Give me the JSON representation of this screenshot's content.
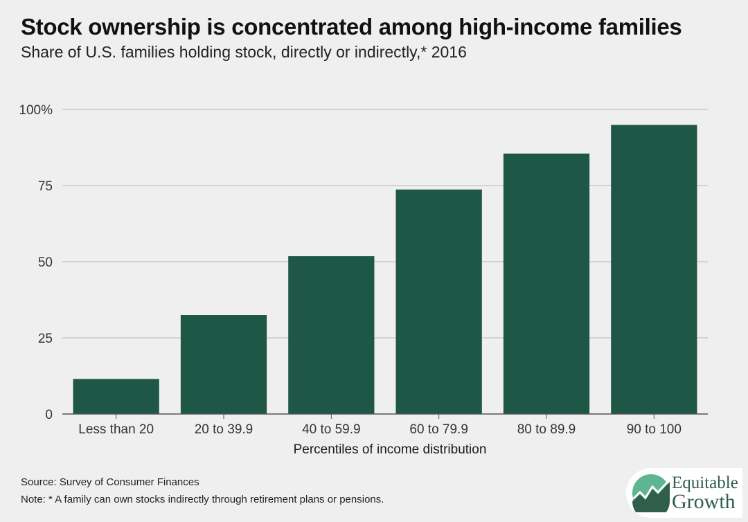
{
  "header": {
    "title": "Stock ownership is concentrated among high-income families",
    "subtitle": "Share of U.S. families holding stock, directly or indirectly,* 2016"
  },
  "footer": {
    "source": "Source: Survey of Consumer Finances",
    "note": "Note: * A family can own stocks indirectly through retirement plans or pensions."
  },
  "logo": {
    "line1": "Equitable",
    "line2": "Growth"
  },
  "colors": {
    "bar": "#1f5746",
    "grid": "#b5b5b5",
    "axis": "#555555",
    "background": "#efefef",
    "logo_green": "#2f5f4c",
    "logo_circle": "#5fb592"
  },
  "chart_data": {
    "type": "bar",
    "title": "",
    "xlabel": "Percentiles of income distribution",
    "ylabel": "",
    "categories": [
      "Less than 20",
      "20 to 39.9",
      "40 to 59.9",
      "60 to 79.9",
      "80 to 89.9",
      "90 to 100"
    ],
    "values": [
      11.5,
      32.5,
      51.8,
      73.7,
      85.5,
      94.9
    ],
    "ylim": [
      0,
      100
    ],
    "yticks": [
      0,
      25,
      50,
      75,
      100
    ],
    "ytick_labels": [
      "0",
      "25",
      "50",
      "75",
      "100%"
    ],
    "grid": true,
    "legend": "none"
  }
}
